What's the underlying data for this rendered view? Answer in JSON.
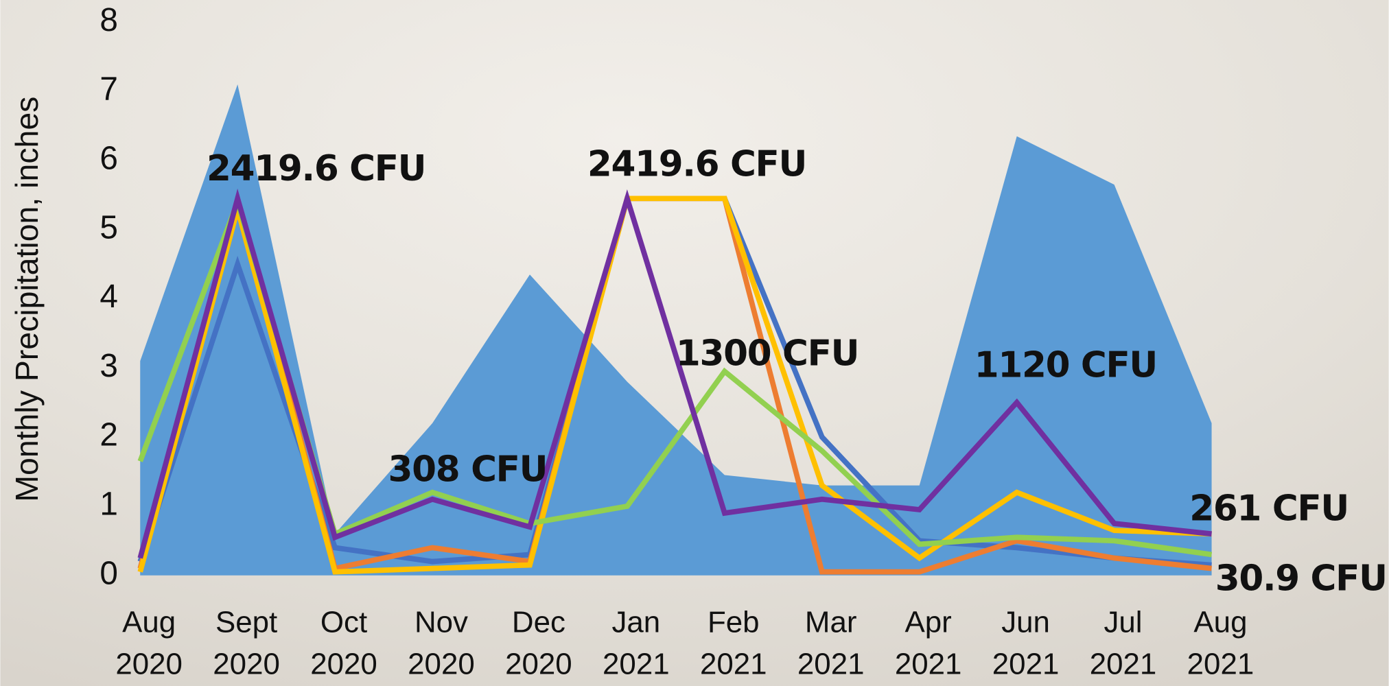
{
  "chart_data": {
    "type": "area-line",
    "y_label": "Monthly Precipitation, inches",
    "categories": [
      "Aug 2020",
      "Sept 2020",
      "Oct 2020",
      "Nov 2020",
      "Dec 2020",
      "Jan 2021",
      "Feb 2021",
      "Mar 2021",
      "Apr 2021",
      "Jun 2021",
      "Jul 2021",
      "Aug 2021"
    ],
    "ylim": [
      0,
      8
    ],
    "yticks": [
      0,
      1,
      2,
      3,
      4,
      5,
      6,
      7,
      8
    ],
    "grid": false,
    "series": [
      {
        "type": "area",
        "color": "#5b9bd5",
        "values": [
          3.1,
          7.1,
          0.6,
          2.2,
          4.35,
          2.8,
          1.45,
          1.3,
          1.3,
          6.35,
          5.65,
          2.2
        ]
      },
      {
        "type": "line",
        "color": "#4472c4",
        "values": [
          0.2,
          4.5,
          0.4,
          0.2,
          0.3,
          5.45,
          5.45,
          2.0,
          0.5,
          0.4,
          0.25,
          0.15
        ]
      },
      {
        "type": "line",
        "color": "#ed7d31",
        "values": [
          0.1,
          5.4,
          0.1,
          0.4,
          0.2,
          5.45,
          5.45,
          0.05,
          0.05,
          0.5,
          0.25,
          0.1
        ]
      },
      {
        "type": "line",
        "color": "#ffc000",
        "values": [
          0.05,
          5.3,
          0.05,
          0.1,
          0.15,
          5.45,
          5.45,
          1.3,
          0.25,
          1.2,
          0.65,
          0.6
        ]
      },
      {
        "type": "line",
        "color": "#92d050",
        "values": [
          1.65,
          5.4,
          0.6,
          1.2,
          0.75,
          1.0,
          2.95,
          1.8,
          0.45,
          0.55,
          0.5,
          0.3
        ]
      },
      {
        "type": "line",
        "color": "#7030a0",
        "values": [
          0.25,
          5.45,
          0.55,
          1.1,
          0.7,
          5.45,
          0.9,
          1.1,
          0.95,
          2.5,
          0.75,
          0.6
        ]
      }
    ],
    "annotations": [
      "2419.6 CFU",
      "308 CFU",
      "2419.6 CFU",
      "1300 CFU",
      "1120 CFU",
      "261 CFU",
      "30.9 CFU"
    ]
  }
}
